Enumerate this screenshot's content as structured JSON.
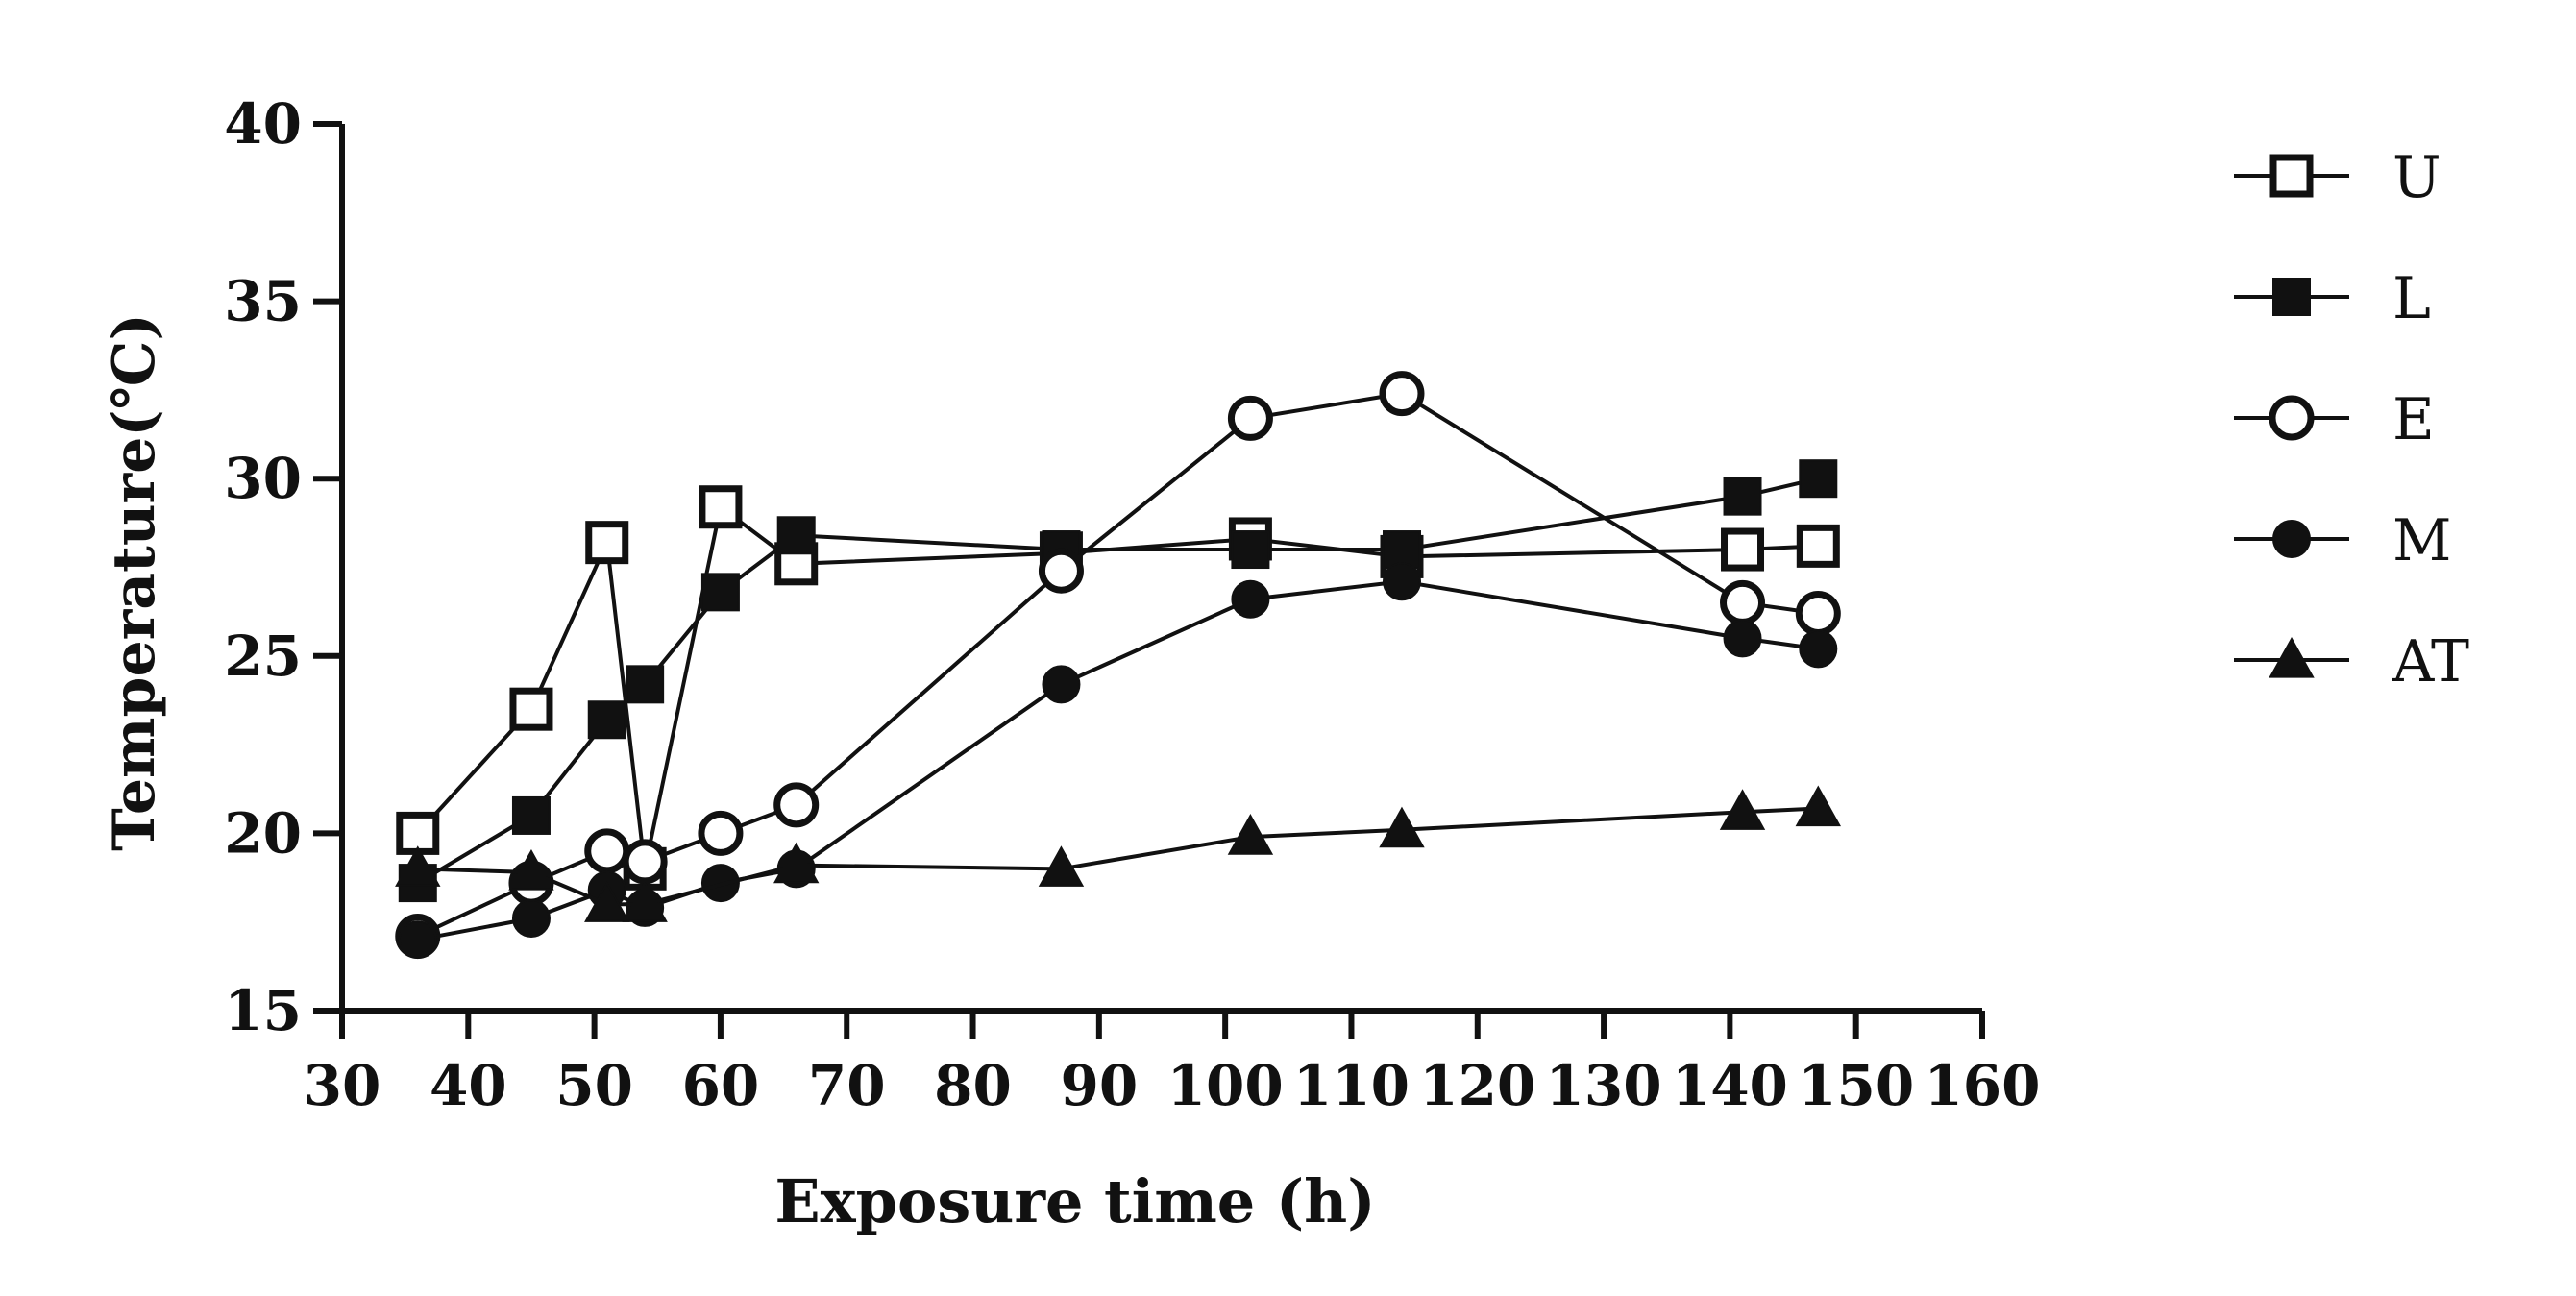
{
  "chart_data": {
    "type": "line",
    "title": "",
    "xlabel": "Exposure time (h)",
    "ylabel": "Temperature(℃)",
    "xlim": [
      30,
      160
    ],
    "ylim": [
      15,
      40
    ],
    "xticks": [
      30,
      40,
      50,
      60,
      70,
      80,
      90,
      100,
      110,
      120,
      130,
      140,
      150,
      160
    ],
    "yticks": [
      15,
      20,
      25,
      30,
      35,
      40
    ],
    "grid": false,
    "legend_position": "right",
    "series": [
      {
        "name": "U",
        "marker": "open-square",
        "x": [
          36,
          45,
          51,
          54,
          60,
          66,
          87,
          102,
          114,
          141,
          147
        ],
        "y": [
          20.0,
          23.5,
          28.2,
          19.0,
          29.2,
          27.6,
          27.9,
          28.3,
          27.8,
          28.0,
          28.1
        ]
      },
      {
        "name": "L",
        "marker": "filled-square",
        "x": [
          36,
          45,
          51,
          54,
          60,
          66,
          87,
          102,
          114,
          141,
          147
        ],
        "y": [
          18.6,
          20.5,
          23.2,
          24.2,
          26.8,
          28.4,
          28.0,
          28.0,
          28.0,
          29.5,
          30.0
        ]
      },
      {
        "name": "E",
        "marker": "open-circle",
        "x": [
          36,
          45,
          51,
          54,
          60,
          66,
          87,
          102,
          114,
          141,
          147
        ],
        "y": [
          17.1,
          18.6,
          19.5,
          19.2,
          20.0,
          20.8,
          27.4,
          31.7,
          32.4,
          26.5,
          26.2
        ]
      },
      {
        "name": "M",
        "marker": "filled-circle",
        "x": [
          36,
          45,
          51,
          54,
          60,
          66,
          87,
          102,
          114,
          141,
          147
        ],
        "y": [
          17.0,
          17.6,
          18.4,
          17.9,
          18.6,
          19.0,
          24.2,
          26.6,
          27.1,
          25.5,
          25.2
        ]
      },
      {
        "name": "AT",
        "marker": "filled-triangle",
        "x": [
          36,
          45,
          51,
          54,
          66,
          87,
          102,
          114,
          141,
          147
        ],
        "y": [
          19.0,
          18.9,
          18.0,
          18.0,
          19.1,
          19.0,
          19.9,
          20.1,
          20.6,
          20.7
        ]
      }
    ]
  }
}
